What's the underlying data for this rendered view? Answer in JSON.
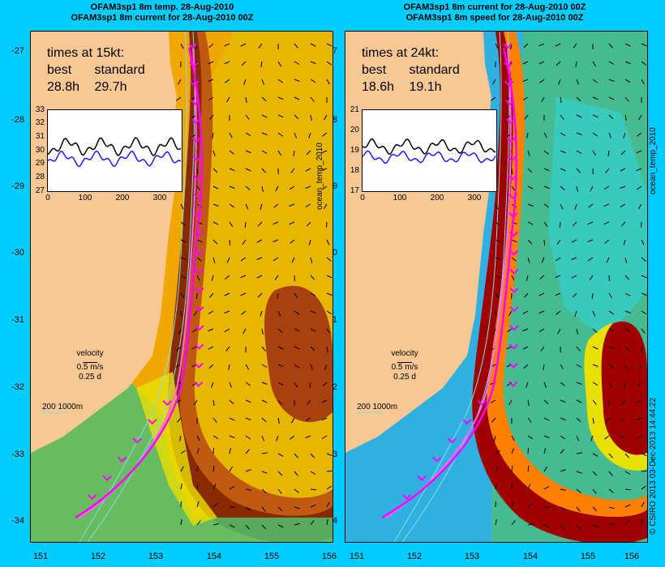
{
  "left_panel": {
    "title_line1": "OFAM3sp1 8m temp. 28-Aug-2010",
    "title_line2": "OFAM3sp1 8m current for 28-Aug-2010 00Z",
    "times_heading": "times at 15kt:",
    "col_best": "best",
    "col_standard": "standard",
    "best_value": "28.8h",
    "standard_value": "29.7h",
    "inset_y_ticks": [
      "33",
      "32",
      "31",
      "30",
      "29",
      "28",
      "27"
    ],
    "inset_x_ticks": [
      "0",
      "100",
      "200",
      "300"
    ],
    "side_label": "ocean_temp_2010",
    "field_colors": [
      "#00b8ff",
      "#3aa7e5",
      "#40c060",
      "#a8d860",
      "#e7e600",
      "#ffb000",
      "#c86000",
      "#a03000"
    ]
  },
  "right_panel": {
    "title_line1": "OFAM3sp1 8m current for 28-Aug-2010 00Z",
    "title_line2": "OFAM3sp1 8m speed for 28-Aug-2010 00Z",
    "times_heading": "times at 24kt:",
    "col_best": "best",
    "col_standard": "standard",
    "best_value": "18.6h",
    "standard_value": "19.1h",
    "inset_y_ticks": [
      "21",
      "20",
      "19",
      "18",
      "17"
    ],
    "inset_x_ticks": [
      "0",
      "100",
      "200",
      "300"
    ],
    "side_label": "ocean_temp_2010",
    "field_colors": [
      "#1a6ee6",
      "#2ab0f0",
      "#30d0d0",
      "#50c060",
      "#b0d840",
      "#e8e000",
      "#ff8000",
      "#a00000"
    ]
  },
  "lat_ticks": [
    "-27",
    "-28",
    "-29",
    "-30",
    "-31",
    "-32",
    "-33",
    "-34"
  ],
  "lon_ticks": [
    "151",
    "152",
    "153",
    "154",
    "155",
    "156"
  ],
  "velocity_legend": {
    "label": "velocity",
    "speed": "0.5 m/s",
    "duration": "0.25 d"
  },
  "depth_legend": {
    "label": "200  1000m"
  },
  "copyright": "© CSIRO 2013   03-Dec-2013 14:44:22",
  "colors": {
    "background": "#00cdfd",
    "land": "#f8c894",
    "route_best": "#ff00ff",
    "route_standard": "#ff66ff",
    "inset_black": "#000000",
    "inset_blue": "#1e1eff"
  }
}
